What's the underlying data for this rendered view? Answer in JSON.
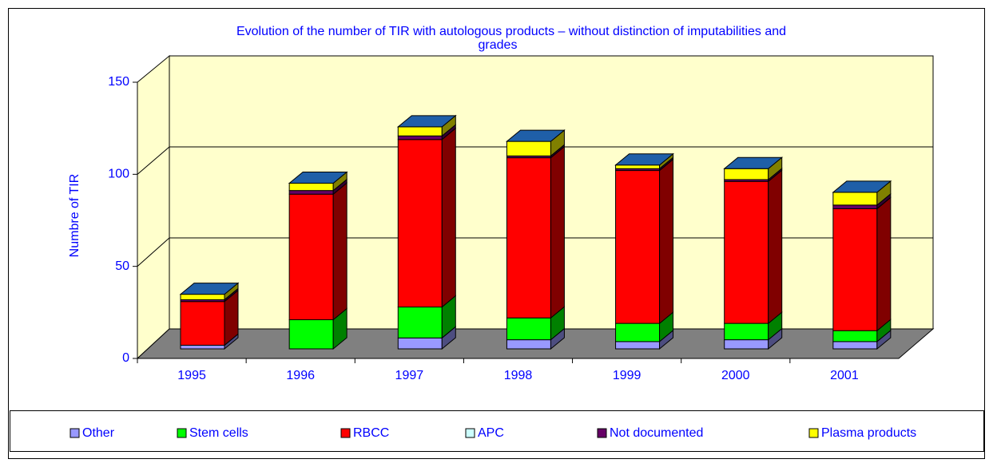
{
  "chart_data": {
    "type": "bar3d_stacked",
    "title": "Evolution of the number of TIR with autologous products – without distinction of imputabilities and grades",
    "y_label": "Numbre of TIR",
    "categories": [
      "1995",
      "1996",
      "1997",
      "1998",
      "1999",
      "2000",
      "2001"
    ],
    "series": [
      {
        "name": "Other",
        "color": "#9999ff",
        "values": [
          2,
          0,
          6,
          5,
          4,
          5,
          4
        ]
      },
      {
        "name": "Stem cells",
        "color": "#00ff00",
        "values": [
          0,
          16,
          17,
          12,
          10,
          9,
          6
        ]
      },
      {
        "name": "RBCC",
        "color": "#ff0000",
        "values": [
          24,
          69,
          92,
          88,
          84,
          78,
          67
        ]
      },
      {
        "name": "APC",
        "color": "#ccffff",
        "values": [
          0,
          0,
          0,
          0,
          0,
          0,
          0
        ]
      },
      {
        "name": "Not documented",
        "color": "#660066",
        "values": [
          1,
          2,
          2,
          1,
          1,
          1,
          2
        ]
      },
      {
        "name": "Plasma products",
        "color": "#ffff00",
        "values": [
          3,
          4,
          5,
          8,
          2,
          6,
          7
        ]
      }
    ],
    "ylim": [
      0,
      150
    ],
    "yticks": [
      0,
      50,
      100,
      150
    ],
    "grid": true,
    "legend": "bottom"
  }
}
